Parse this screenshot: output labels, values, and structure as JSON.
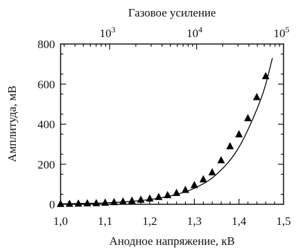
{
  "chart_data": {
    "type": "scatter",
    "title": "",
    "xlabel": "Анодное напряжение, кВ",
    "ylabel": "Амплитуда, мВ",
    "top_axis_label": "Газовое усиление",
    "xlim": [
      1.0,
      1.5
    ],
    "ylim": [
      0,
      800
    ],
    "x_ticks": [
      1.0,
      1.1,
      1.2,
      1.3,
      1.4,
      1.5
    ],
    "x_tick_labels": [
      "1,0",
      "1,1",
      "1,2",
      "1,3",
      "1,4",
      "1,5"
    ],
    "y_ticks": [
      0,
      200,
      400,
      600,
      800
    ],
    "y_tick_labels": [
      "0",
      "200",
      "400",
      "600",
      "800"
    ],
    "top_axis": {
      "scale": "log",
      "ticks": [
        {
          "x": 1.11,
          "gain": 1000,
          "base": "10",
          "exp": "3"
        },
        {
          "x": 1.305,
          "gain": 10000,
          "base": "10",
          "exp": "4"
        },
        {
          "x": 1.5,
          "gain": 100000,
          "base": "10",
          "exp": "5"
        }
      ]
    },
    "grid": false,
    "legend": "none",
    "series": [
      {
        "marker": "triangle",
        "x": [
          1.0,
          1.02,
          1.04,
          1.06,
          1.08,
          1.1,
          1.12,
          1.14,
          1.16,
          1.18,
          1.2,
          1.22,
          1.24,
          1.26,
          1.28,
          1.3,
          1.32,
          1.34,
          1.36,
          1.38,
          1.4,
          1.42,
          1.44,
          1.46
        ],
        "y": [
          2,
          3,
          4,
          5,
          6,
          8,
          11,
          14,
          18,
          23,
          29,
          37,
          46,
          57,
          72,
          96,
          125,
          160,
          220,
          290,
          350,
          430,
          535,
          640
        ]
      }
    ],
    "fit_curve": {
      "x": [
        1.0,
        1.05,
        1.1,
        1.15,
        1.2,
        1.25,
        1.3,
        1.35,
        1.4,
        1.45,
        1.475
      ],
      "y": [
        2,
        4,
        7,
        13,
        24,
        44,
        80,
        150,
        285,
        530,
        730
      ]
    }
  }
}
